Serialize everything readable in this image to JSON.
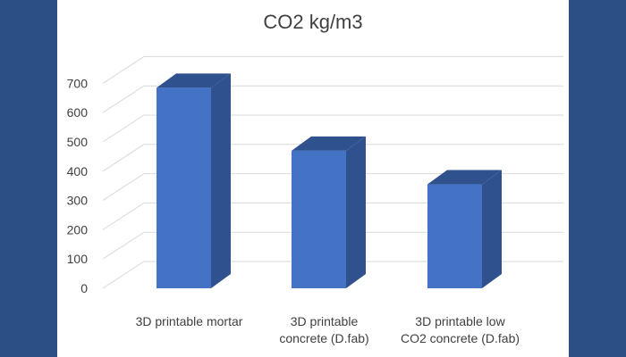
{
  "chart_data": {
    "type": "bar",
    "title": "CO2 kg/m3",
    "categories": [
      [
        "3D printable mortar"
      ],
      [
        "3D printable",
        "concrete (D.fab)"
      ],
      [
        "3D printable low",
        "CO2 concrete (D.fab)"
      ]
    ],
    "values": [
      685,
      470,
      355
    ],
    "ylim": [
      0,
      700
    ],
    "yticks": [
      0,
      100,
      200,
      300,
      400,
      500,
      600,
      700
    ],
    "grid": true,
    "style": "3d-column",
    "colors": {
      "front": "#4472c4",
      "side": "#2f528f",
      "top": "#2f528f",
      "grid": "#d9d9d9",
      "background": "#2c4f86"
    }
  }
}
